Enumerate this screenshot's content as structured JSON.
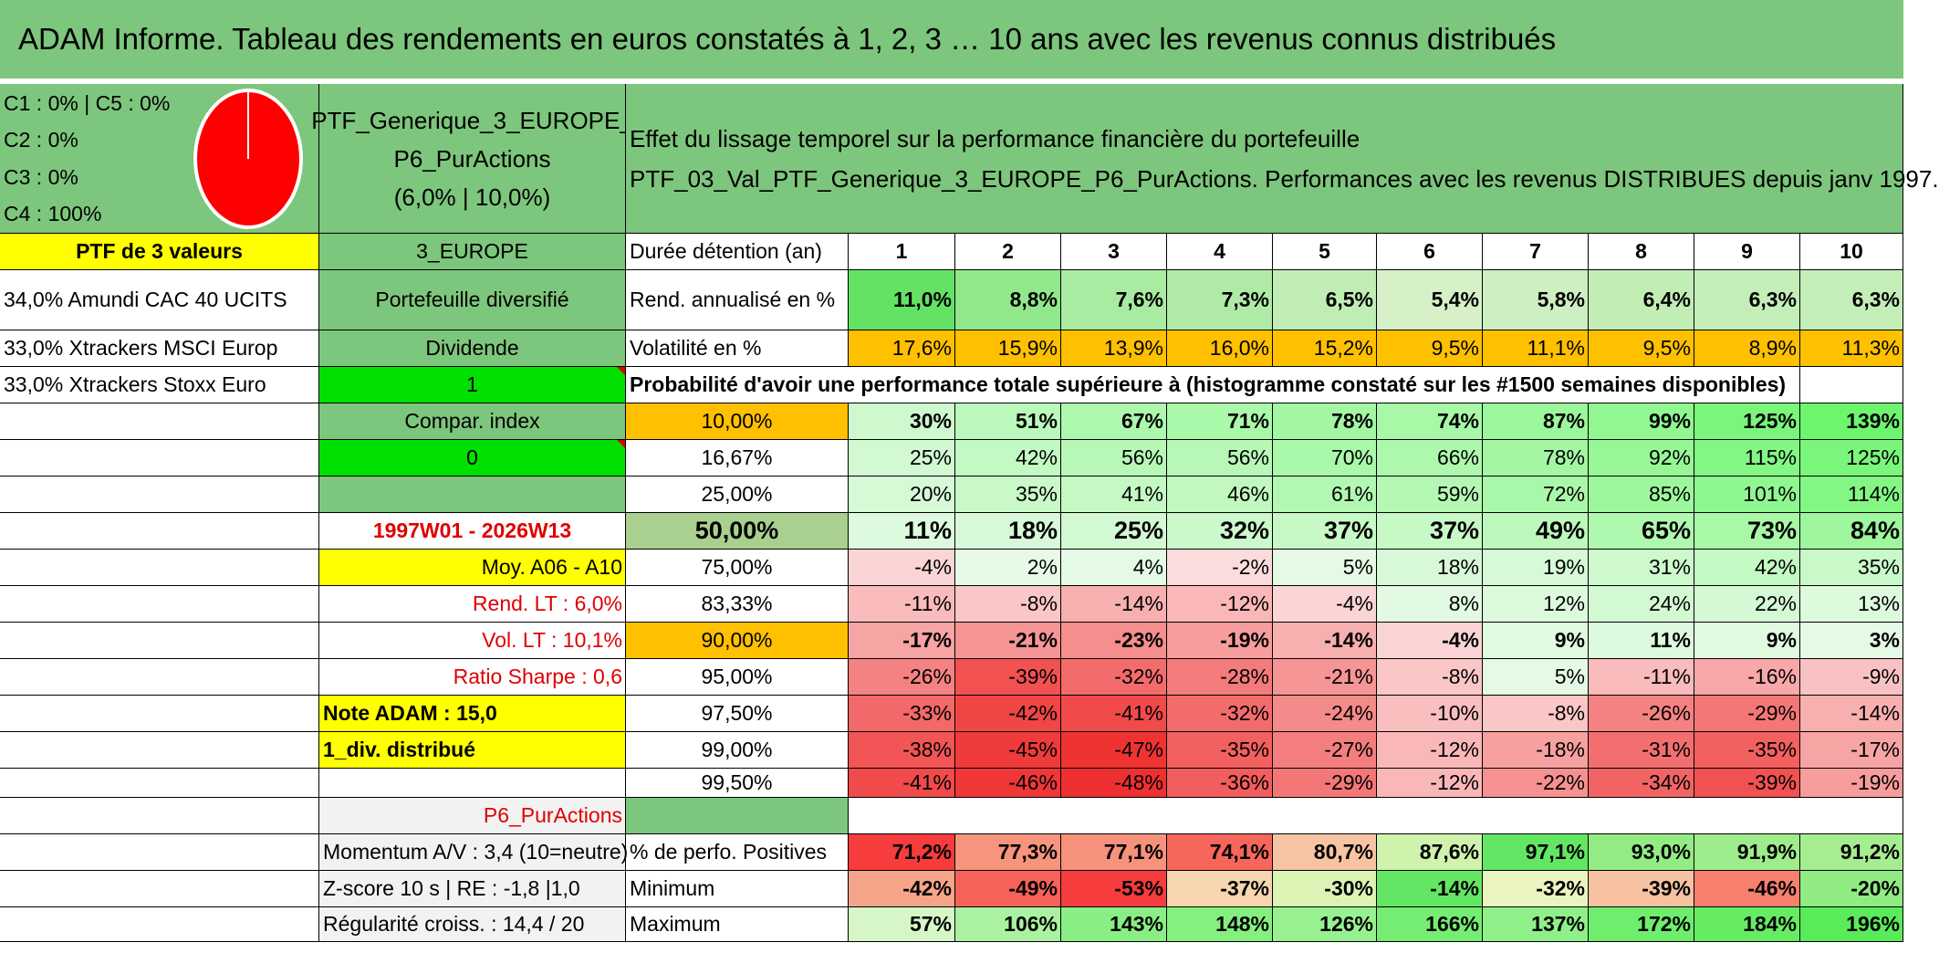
{
  "title": "ADAM Informe. Tableau des rendements en euros constatés à 1, 2, 3 … 10 ans avec les revenus connus distribués",
  "colors": {
    "header_green": "#7dc67d",
    "yellow": "#ffff00",
    "bright_green": "#00e000",
    "orange": "#ffc000",
    "red_text": "#e00000",
    "pie_red": "#ff0000"
  },
  "allocation": {
    "line1": "C1 : 0% | C5 : 0%",
    "line2": "C2 : 0%",
    "line3": "C3 : 0%",
    "line4": "C4 : 100%"
  },
  "portfolio": {
    "name_line1": "PTF_Generique_3_EUROPE_",
    "name_line2": "P6_PurActions",
    "name_line3": "(6,0% | 10,0%)"
  },
  "description": {
    "line1": "Effet du lissage temporel sur la performance financière du portefeuille",
    "line2": "PTF_03_Val_PTF_Generique_3_EUROPE_P6_PurActions. Performances avec les revenus DISTRIBUES depuis janv 1997."
  },
  "left_col": {
    "ptf_header": "PTF de 3 valeurs",
    "holdings": [
      "34,0% Amundi CAC 40 UCITS",
      "33,0% Xtrackers MSCI Europ",
      "33,0% Xtrackers Stoxx Euro"
    ]
  },
  "mid_col": {
    "zone": "3_EUROPE",
    "diversified": "Portefeuille diversifié",
    "dividende": "Dividende",
    "dividende_value": "1",
    "compar_index": "Compar. index",
    "compar_value": "0",
    "period": "1997W01 - 2026W13",
    "moy": "Moy. A06 - A10",
    "rend_lt": "Rend. LT : 6,0%",
    "vol_lt": "Vol. LT : 10,1%",
    "sharpe": "Ratio Sharpe : 0,6",
    "note": "Note ADAM : 15,0",
    "div": "1_div. distribué",
    "profile": "P6_PurActions",
    "momentum": "Momentum A/V : 3,4 (10=neutre)",
    "zscore": "Z-score 10 s | RE : -1,8 |1,0",
    "regularite": "Régularité croiss. : 14,4 / 20"
  },
  "labels": {
    "duree": "Durée détention (an)",
    "rend": "Rend. annualisé en %",
    "vol": "Volatilité en %",
    "proba": "Probabilité d'avoir une performance totale supérieure à (histogramme constaté sur les #1500 semaines disponibles)",
    "positives": "% de perfo. Positives",
    "minimum": "Minimum",
    "maximum": "Maximum"
  },
  "chart_data": {
    "type": "table",
    "title": "ADAM Informe. Tableau des rendements en euros constatés à 1, 2, 3 … 10 ans avec les revenus connus distribués",
    "years": [
      "1",
      "2",
      "3",
      "4",
      "5",
      "6",
      "7",
      "8",
      "9",
      "10"
    ],
    "allocation_pie": {
      "C1": 0,
      "C2": 0,
      "C3": 0,
      "C4": 100,
      "C5": 0
    },
    "rend_annualise": [
      "11,0%",
      "8,8%",
      "7,6%",
      "7,3%",
      "6,5%",
      "5,4%",
      "5,8%",
      "6,4%",
      "6,3%",
      "6,3%"
    ],
    "volatilite": [
      "17,6%",
      "15,9%",
      "13,9%",
      "16,0%",
      "15,2%",
      "9,5%",
      "11,1%",
      "9,5%",
      "8,9%",
      "11,3%"
    ],
    "quantiles": [
      {
        "label": "10,00%",
        "values": [
          "30%",
          "51%",
          "67%",
          "71%",
          "78%",
          "74%",
          "87%",
          "99%",
          "125%",
          "139%"
        ]
      },
      {
        "label": "16,67%",
        "values": [
          "25%",
          "42%",
          "56%",
          "56%",
          "70%",
          "66%",
          "78%",
          "92%",
          "115%",
          "125%"
        ]
      },
      {
        "label": "25,00%",
        "values": [
          "20%",
          "35%",
          "41%",
          "46%",
          "61%",
          "59%",
          "72%",
          "85%",
          "101%",
          "114%"
        ]
      },
      {
        "label": "50,00%",
        "values": [
          "11%",
          "18%",
          "25%",
          "32%",
          "37%",
          "37%",
          "49%",
          "65%",
          "73%",
          "84%"
        ]
      },
      {
        "label": "75,00%",
        "values": [
          "-4%",
          "2%",
          "4%",
          "-2%",
          "5%",
          "18%",
          "19%",
          "31%",
          "42%",
          "35%"
        ]
      },
      {
        "label": "83,33%",
        "values": [
          "-11%",
          "-8%",
          "-14%",
          "-12%",
          "-4%",
          "8%",
          "12%",
          "24%",
          "22%",
          "13%"
        ]
      },
      {
        "label": "90,00%",
        "values": [
          "-17%",
          "-21%",
          "-23%",
          "-19%",
          "-14%",
          "-4%",
          "9%",
          "11%",
          "9%",
          "3%"
        ]
      },
      {
        "label": "95,00%",
        "values": [
          "-26%",
          "-39%",
          "-32%",
          "-28%",
          "-21%",
          "-8%",
          "5%",
          "-11%",
          "-16%",
          "-9%"
        ]
      },
      {
        "label": "97,50%",
        "values": [
          "-33%",
          "-42%",
          "-41%",
          "-32%",
          "-24%",
          "-10%",
          "-8%",
          "-26%",
          "-29%",
          "-14%"
        ]
      },
      {
        "label": "99,00%",
        "values": [
          "-38%",
          "-45%",
          "-47%",
          "-35%",
          "-27%",
          "-12%",
          "-18%",
          "-31%",
          "-35%",
          "-17%"
        ]
      },
      {
        "label": "99,50%",
        "values": [
          "-41%",
          "-46%",
          "-48%",
          "-36%",
          "-29%",
          "-12%",
          "-22%",
          "-34%",
          "-39%",
          "-19%"
        ]
      }
    ],
    "perfo_positives": [
      "71,2%",
      "77,3%",
      "77,1%",
      "74,1%",
      "80,7%",
      "87,6%",
      "97,1%",
      "93,0%",
      "91,9%",
      "91,2%"
    ],
    "minimum": [
      "-42%",
      "-49%",
      "-53%",
      "-37%",
      "-30%",
      "-14%",
      "-32%",
      "-39%",
      "-46%",
      "-20%"
    ],
    "maximum": [
      "57%",
      "106%",
      "143%",
      "148%",
      "126%",
      "166%",
      "137%",
      "172%",
      "184%",
      "196%"
    ]
  }
}
